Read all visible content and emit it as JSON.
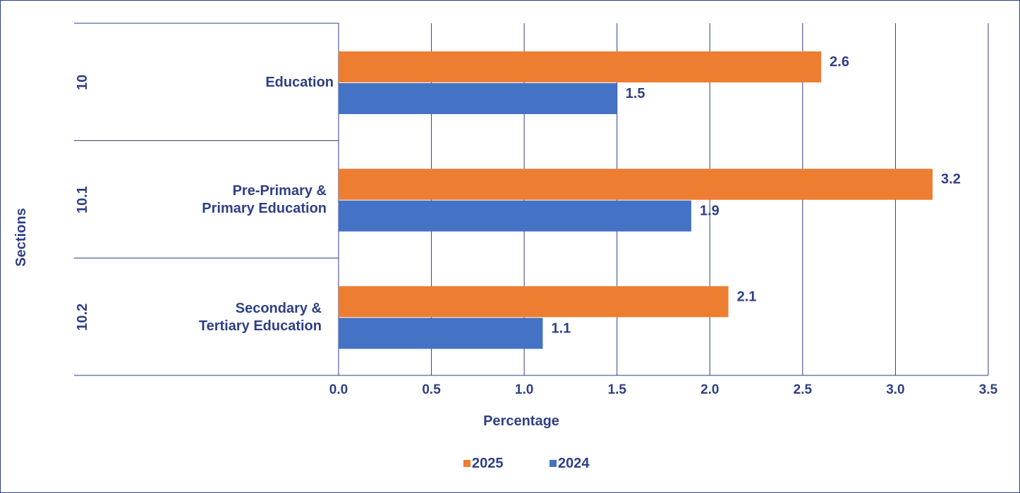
{
  "chart_data": {
    "type": "bar",
    "orientation": "horizontal",
    "categories": [
      {
        "code": "10",
        "name_lines": [
          "Education"
        ]
      },
      {
        "code": "10.1",
        "name_lines": [
          "Pre-Primary &",
          "Primary Education"
        ]
      },
      {
        "code": "10.2",
        "name_lines": [
          "Secondary &",
          "Tertiary Education"
        ]
      }
    ],
    "series": [
      {
        "name": "2025",
        "color": "#ed7d31",
        "values": [
          2.6,
          3.2,
          2.1
        ],
        "labels": [
          "2.6",
          "3.2",
          "2.1"
        ]
      },
      {
        "name": "2024",
        "color": "#4472c4",
        "values": [
          1.5,
          1.9,
          1.1
        ],
        "labels": [
          "1.5",
          "1.9",
          "1.1"
        ]
      }
    ],
    "xlim": [
      0,
      3.5
    ],
    "xticks": [
      "0.0",
      "0.5",
      "1.0",
      "1.5",
      "2.0",
      "2.5",
      "3.0",
      "3.5"
    ],
    "xlabel": "Percentage",
    "ylabel": "Sections",
    "grid": "vertical",
    "legend_position": "bottom-center",
    "text_color": "#2e3f86"
  }
}
